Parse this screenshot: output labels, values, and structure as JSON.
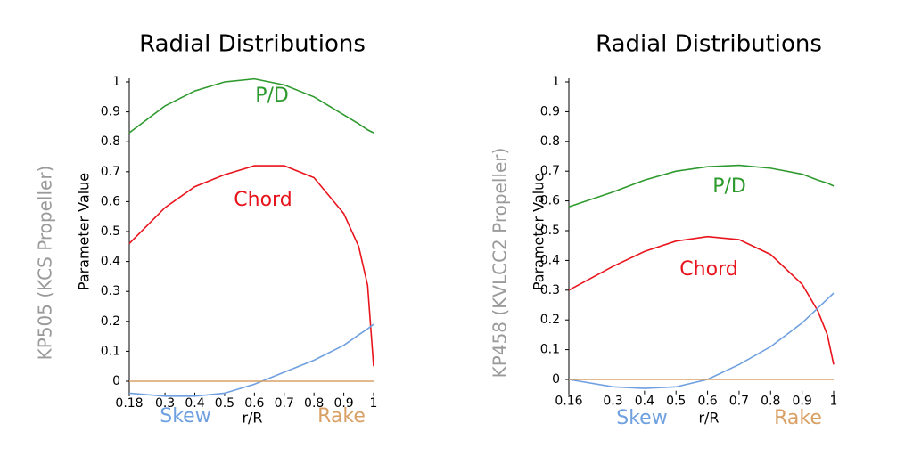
{
  "chart_data": [
    {
      "type": "line",
      "title": "Radial Distributions",
      "side_label": "KP505 (KCS Propeller)",
      "x_label": "r/R",
      "y_label": "Parameter Value",
      "x": [
        0.18,
        0.3,
        0.4,
        0.5,
        0.6,
        0.7,
        0.8,
        0.9,
        0.95,
        0.98,
        1
      ],
      "series": [
        {
          "name": "P/D",
          "color": "#2e9a2e",
          "values": [
            0.83,
            0.92,
            0.97,
            1.0,
            1.01,
            0.99,
            0.95,
            0.89,
            0.86,
            0.84,
            0.83
          ]
        },
        {
          "name": "Chord",
          "color": "#e8141c",
          "values": [
            0.46,
            0.58,
            0.65,
            0.69,
            0.72,
            0.72,
            0.68,
            0.56,
            0.45,
            0.32,
            0.05
          ]
        },
        {
          "name": "Skew",
          "color": "#6fa0e0",
          "values": [
            -0.04,
            -0.05,
            -0.05,
            -0.04,
            -0.01,
            0.03,
            0.07,
            0.12,
            0.155,
            0.175,
            0.19
          ]
        },
        {
          "name": "Rake",
          "color": "#d9a066",
          "values": [
            0,
            0,
            0,
            0,
            0,
            0,
            0,
            0,
            0,
            0,
            0
          ]
        }
      ],
      "xlim": [
        0.18,
        1
      ],
      "xticks": [
        0.18,
        0.3,
        0.4,
        0.5,
        0.6,
        0.7,
        0.8,
        0.9,
        1
      ],
      "ylim": [
        -0.05,
        1
      ],
      "yticks": [
        0,
        0.1,
        0.2,
        0.3,
        0.4,
        0.5,
        0.6,
        0.7,
        0.8,
        0.9,
        1
      ]
    },
    {
      "type": "line",
      "title": "Radial Distributions",
      "side_label": "KP458 (KVLCC2 Propeller)",
      "x_label": "r/R",
      "y_label": "Parameter Value",
      "x": [
        0.16,
        0.3,
        0.4,
        0.5,
        0.6,
        0.7,
        0.8,
        0.9,
        0.95,
        0.98,
        1
      ],
      "series": [
        {
          "name": "P/D",
          "color": "#2e9a2e",
          "values": [
            0.58,
            0.63,
            0.67,
            0.7,
            0.715,
            0.72,
            0.71,
            0.69,
            0.67,
            0.66,
            0.65
          ]
        },
        {
          "name": "Chord",
          "color": "#e8141c",
          "values": [
            0.3,
            0.38,
            0.43,
            0.465,
            0.48,
            0.47,
            0.42,
            0.32,
            0.23,
            0.15,
            0.05
          ]
        },
        {
          "name": "Skew",
          "color": "#6fa0e0",
          "values": [
            0,
            -0.025,
            -0.03,
            -0.025,
            0,
            0.05,
            0.11,
            0.19,
            0.24,
            0.27,
            0.29
          ]
        },
        {
          "name": "Rake",
          "color": "#d9a066",
          "values": [
            0,
            0,
            0,
            0,
            0,
            0,
            0,
            0,
            0,
            0,
            0
          ]
        }
      ],
      "xlim": [
        0.16,
        1
      ],
      "xticks": [
        0.16,
        0.3,
        0.4,
        0.5,
        0.6,
        0.7,
        0.8,
        0.9,
        1
      ],
      "ylim": [
        -0.05,
        1
      ],
      "yticks": [
        0,
        0.1,
        0.2,
        0.3,
        0.4,
        0.5,
        0.6,
        0.7,
        0.8,
        0.9,
        1
      ]
    }
  ]
}
